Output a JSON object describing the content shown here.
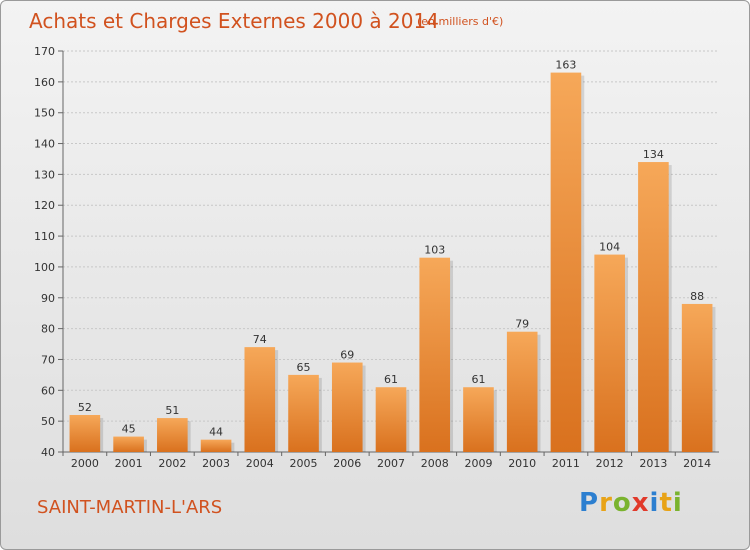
{
  "header": {
    "title": "Achats et Charges Externes 2000 à 2014",
    "subtitle": "(en milliers d'€)"
  },
  "footer": {
    "commune": "SAINT-MARTIN-L'ARS",
    "logo": "Proxiti"
  },
  "colors": {
    "title": "#d1521f",
    "bar_top": "#f6a859",
    "bar_bottom": "#d9711e"
  },
  "chart_data": {
    "type": "bar",
    "title": "Achats et Charges Externes 2000 à 2014",
    "subtitle": "(en milliers d'€)",
    "xlabel": "",
    "ylabel": "",
    "categories": [
      "2000",
      "2001",
      "2002",
      "2003",
      "2004",
      "2005",
      "2006",
      "2007",
      "2008",
      "2009",
      "2010",
      "2011",
      "2012",
      "2013",
      "2014"
    ],
    "values": [
      52,
      45,
      51,
      44,
      74,
      65,
      69,
      61,
      103,
      61,
      79,
      163,
      104,
      134,
      88
    ],
    "ylim": [
      40,
      170
    ],
    "yticks": [
      40,
      50,
      60,
      70,
      80,
      90,
      100,
      110,
      120,
      130,
      140,
      150,
      160,
      170
    ],
    "grid": true,
    "legend": "none"
  }
}
